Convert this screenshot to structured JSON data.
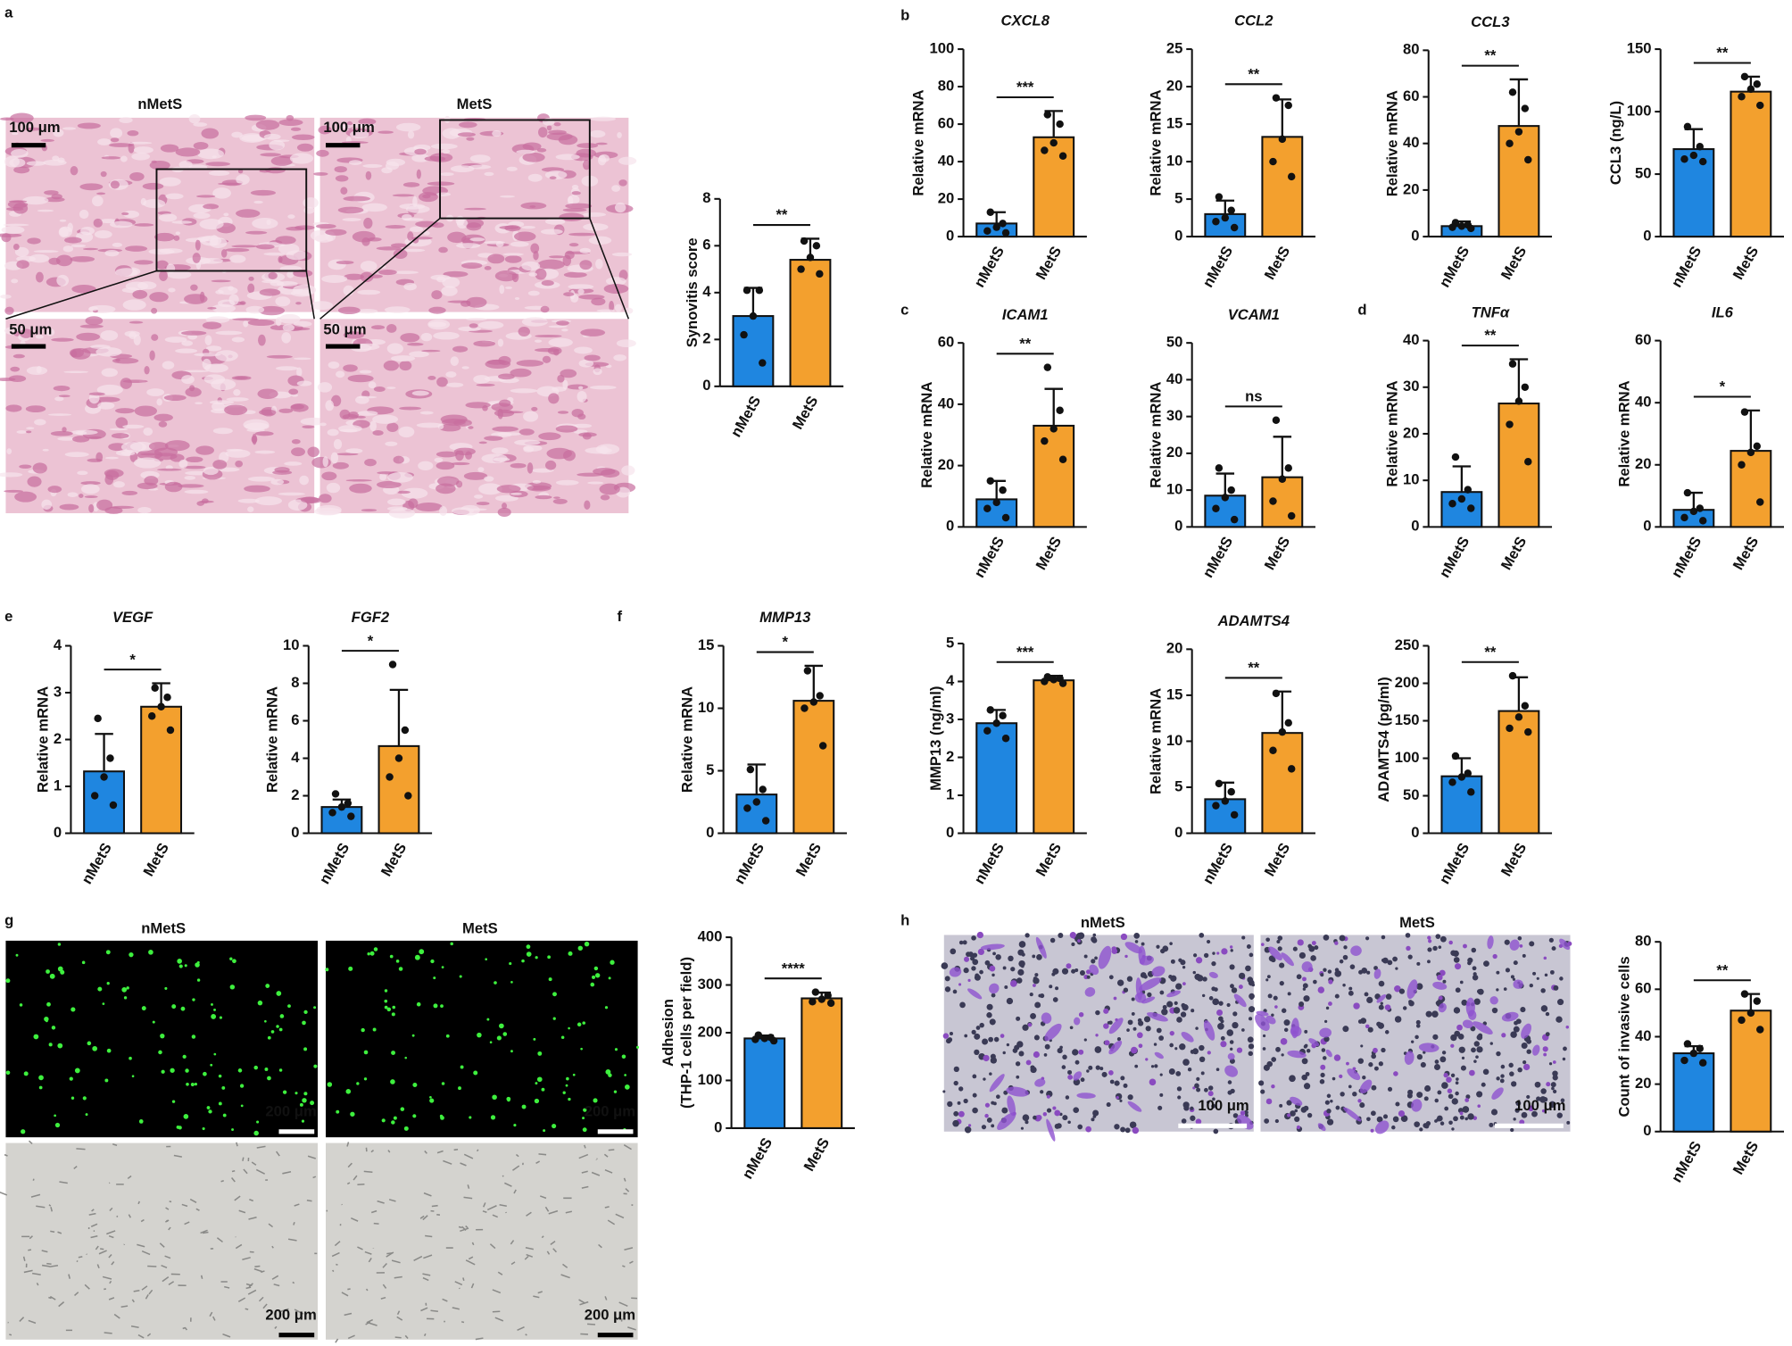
{
  "figure": {
    "panel_labels": [
      "a",
      "b",
      "c",
      "d",
      "e",
      "f",
      "g",
      "h"
    ],
    "image_groups": [
      {
        "columns": [
          "nMetS",
          "MetS"
        ],
        "scale_bars": [
          "100 μm",
          "100 μm",
          "50 μm",
          "50 μm"
        ]
      },
      {
        "columns": [
          "nMetS",
          "MetS"
        ],
        "scale_bars": [
          "200 μm",
          "200 μm",
          "200 μm",
          "200 μm"
        ]
      },
      {
        "columns": [
          "nMetS",
          "MetS"
        ],
        "scale_bars": [
          "100 μm",
          "100 μm"
        ]
      }
    ]
  },
  "chart_data": [
    {
      "type": "bar",
      "ylabel": "Synovitis score",
      "categories": [
        "nMetS",
        "MetS"
      ],
      "values": [
        3.0,
        5.4
      ],
      "errors": [
        1.2,
        0.9
      ],
      "points": [
        [
          4.1,
          4.1,
          3,
          2.2,
          1
        ],
        [
          6.2,
          6,
          5.5,
          5,
          4.8
        ]
      ],
      "significance": "**",
      "colors": [
        "#1f86e0",
        "#f3a02e"
      ],
      "ylim": [
        0,
        8
      ],
      "yticks": [
        0,
        2,
        4,
        6,
        8
      ]
    },
    {
      "type": "bar",
      "title": "CXCL8",
      "ylabel": "Relative mRNA",
      "categories": [
        "nMetS",
        "MetS"
      ],
      "values": [
        7,
        53
      ],
      "errors": [
        6,
        14
      ],
      "points": [
        [
          13,
          7,
          5,
          3,
          2
        ],
        [
          65,
          60,
          50,
          46,
          43
        ]
      ],
      "significance": "***",
      "colors": [
        "#1f86e0",
        "#f3a02e"
      ],
      "ylim": [
        0,
        100
      ],
      "yticks": [
        0,
        20,
        40,
        60,
        80,
        100
      ]
    },
    {
      "type": "bar",
      "title": "CCL2",
      "ylabel": "Relative mRNA",
      "categories": [
        "nMetS",
        "MetS"
      ],
      "values": [
        3,
        13.3
      ],
      "errors": [
        1.8,
        5
      ],
      "points": [
        [
          5.3,
          3.5,
          2.5,
          2,
          1.2
        ],
        [
          18.5,
          17.5,
          13,
          10,
          8
        ]
      ],
      "significance": "**",
      "colors": [
        "#1f86e0",
        "#f3a02e"
      ],
      "ylim": [
        0,
        25
      ],
      "yticks": [
        0,
        5,
        10,
        15,
        20,
        25
      ]
    },
    {
      "type": "bar",
      "title": "CCL3",
      "ylabel": "Relative mRNA",
      "categories": [
        "nMetS",
        "MetS"
      ],
      "values": [
        4.5,
        47.5
      ],
      "errors": [
        2,
        20
      ],
      "points": [
        [
          6,
          5,
          4.5,
          4,
          3.5
        ],
        [
          62,
          55,
          45,
          40,
          33
        ]
      ],
      "significance": "**",
      "colors": [
        "#1f86e0",
        "#f3a02e"
      ],
      "ylim": [
        0,
        80
      ],
      "yticks": [
        0,
        20,
        40,
        60,
        80
      ]
    },
    {
      "type": "bar",
      "ylabel": "CCL3 (ng/L)",
      "categories": [
        "nMetS",
        "MetS"
      ],
      "values": [
        70,
        116
      ],
      "errors": [
        16,
        12
      ],
      "points": [
        [
          88,
          72,
          65,
          62,
          60
        ],
        [
          128,
          122,
          118,
          112,
          105
        ]
      ],
      "significance": "**",
      "colors": [
        "#1f86e0",
        "#f3a02e"
      ],
      "ylim": [
        0,
        150
      ],
      "yticks": [
        0,
        50,
        100,
        150
      ]
    },
    {
      "type": "bar",
      "title": "ICAM1",
      "ylabel": "Relative mRNA",
      "categories": [
        "nMetS",
        "MetS"
      ],
      "values": [
        9,
        33
      ],
      "errors": [
        6,
        12
      ],
      "points": [
        [
          15,
          12,
          8,
          6,
          3
        ],
        [
          52,
          38,
          32,
          28,
          22
        ]
      ],
      "significance": "**",
      "colors": [
        "#1f86e0",
        "#f3a02e"
      ],
      "ylim": [
        0,
        60
      ],
      "yticks": [
        0,
        20,
        40,
        60
      ]
    },
    {
      "type": "bar",
      "title": "VCAM1",
      "ylabel": "Relative mRNA",
      "categories": [
        "nMetS",
        "MetS"
      ],
      "values": [
        8.5,
        13.5
      ],
      "errors": [
        6,
        11
      ],
      "points": [
        [
          16,
          10,
          8,
          5,
          2
        ],
        [
          29,
          16,
          13,
          7,
          3
        ]
      ],
      "significance": "ns",
      "colors": [
        "#1f86e0",
        "#f3a02e"
      ],
      "ylim": [
        0,
        50
      ],
      "yticks": [
        0,
        10,
        20,
        30,
        40,
        50
      ]
    },
    {
      "type": "bar",
      "title": "TNFα",
      "ylabel": "Relative mRNA",
      "categories": [
        "nMetS",
        "MetS"
      ],
      "values": [
        7.5,
        26.5
      ],
      "errors": [
        5.5,
        9.5
      ],
      "points": [
        [
          15,
          8,
          6,
          5,
          4
        ],
        [
          35,
          30,
          27,
          22,
          14
        ]
      ],
      "significance": "**",
      "colors": [
        "#1f86e0",
        "#f3a02e"
      ],
      "ylim": [
        0,
        40
      ],
      "yticks": [
        0,
        10,
        20,
        30,
        40
      ]
    },
    {
      "type": "bar",
      "title": "IL6",
      "ylabel": "Relative mRNA",
      "categories": [
        "nMetS",
        "MetS"
      ],
      "values": [
        5.5,
        24.5
      ],
      "errors": [
        5.5,
        13
      ],
      "points": [
        [
          11,
          6,
          5,
          3,
          2
        ],
        [
          37,
          26,
          24,
          20,
          8
        ]
      ],
      "significance": "*",
      "colors": [
        "#1f86e0",
        "#f3a02e"
      ],
      "ylim": [
        0,
        60
      ],
      "yticks": [
        0,
        20,
        40,
        60
      ]
    },
    {
      "type": "bar",
      "title": "VEGF",
      "ylabel": "Relative mRNA",
      "categories": [
        "nMetS",
        "MetS"
      ],
      "values": [
        1.32,
        2.7
      ],
      "errors": [
        0.8,
        0.5
      ],
      "points": [
        [
          2.45,
          1.6,
          1.2,
          0.8,
          0.6
        ],
        [
          3.1,
          2.9,
          2.7,
          2.5,
          2.2
        ]
      ],
      "significance": "*",
      "colors": [
        "#1f86e0",
        "#f3a02e"
      ],
      "ylim": [
        0,
        4
      ],
      "yticks": [
        0,
        1,
        2,
        3,
        4
      ]
    },
    {
      "type": "bar",
      "title": "FGF2",
      "ylabel": "Relative mRNA",
      "categories": [
        "nMetS",
        "MetS"
      ],
      "values": [
        1.4,
        4.65
      ],
      "errors": [
        0.4,
        3
      ],
      "points": [
        [
          2.1,
          1.6,
          1.4,
          1.1,
          0.9
        ],
        [
          9,
          5.5,
          4,
          3,
          2
        ]
      ],
      "significance": "*",
      "colors": [
        "#1f86e0",
        "#f3a02e"
      ],
      "ylim": [
        0,
        10
      ],
      "yticks": [
        0,
        2,
        4,
        6,
        8,
        10
      ]
    },
    {
      "type": "bar",
      "title": "MMP13",
      "ylabel": "Relative mRNA",
      "categories": [
        "nMetS",
        "MetS"
      ],
      "values": [
        3.1,
        10.6
      ],
      "errors": [
        2.4,
        2.8
      ],
      "points": [
        [
          5.1,
          3.5,
          2.5,
          2,
          1
        ],
        [
          13,
          11,
          10.5,
          10,
          7
        ]
      ],
      "significance": "*",
      "colors": [
        "#1f86e0",
        "#f3a02e"
      ],
      "ylim": [
        0,
        15
      ],
      "yticks": [
        0,
        5,
        10,
        15
      ]
    },
    {
      "type": "bar",
      "ylabel": "MMP13 (ng/ml)",
      "categories": [
        "nMetS",
        "MetS"
      ],
      "values": [
        2.9,
        4.03
      ],
      "errors": [
        0.35,
        0.12
      ],
      "points": [
        [
          3.25,
          3.1,
          2.9,
          2.7,
          2.5
        ],
        [
          4.12,
          4.08,
          4.05,
          4.0,
          3.95
        ]
      ],
      "significance": "***",
      "colors": [
        "#1f86e0",
        "#f3a02e"
      ],
      "ylim": [
        0,
        5
      ],
      "yticks": [
        0,
        1,
        2,
        3,
        4,
        5
      ]
    },
    {
      "type": "bar",
      "title": "ADAMTS4",
      "ylabel": "Relative mRNA",
      "categories": [
        "nMetS",
        "MetS"
      ],
      "values": [
        3.7,
        10.9
      ],
      "errors": [
        1.8,
        4.5
      ],
      "points": [
        [
          5.4,
          4.5,
          3.5,
          3,
          2
        ],
        [
          15.2,
          12,
          11,
          9,
          7
        ]
      ],
      "significance": "**",
      "colors": [
        "#1f86e0",
        "#f3a02e"
      ],
      "ylim": [
        0,
        20
      ],
      "yticks": [
        0,
        5,
        10,
        15,
        20
      ]
    },
    {
      "type": "bar",
      "ylabel": "ADAMTS4 (pg/ml)",
      "categories": [
        "nMetS",
        "MetS"
      ],
      "values": [
        76,
        163
      ],
      "errors": [
        24,
        45
      ],
      "points": [
        [
          103,
          80,
          75,
          68,
          55
        ],
        [
          210,
          170,
          155,
          140,
          135
        ]
      ],
      "significance": "**",
      "colors": [
        "#1f86e0",
        "#f3a02e"
      ],
      "ylim": [
        0,
        250
      ],
      "yticks": [
        0,
        50,
        100,
        150,
        200,
        250
      ]
    },
    {
      "type": "bar",
      "ylabel": [
        "Adhesion",
        "(THP-1 cells per field)"
      ],
      "categories": [
        "nMetS",
        "MetS"
      ],
      "values": [
        188,
        272
      ],
      "errors": [
        6,
        12
      ],
      "points": [
        [
          195,
          190,
          188,
          186,
          183
        ],
        [
          285,
          278,
          270,
          265,
          262
        ]
      ],
      "significance": "****",
      "colors": [
        "#1f86e0",
        "#f3a02e"
      ],
      "ylim": [
        0,
        400
      ],
      "yticks": [
        0,
        100,
        200,
        300,
        400
      ]
    },
    {
      "type": "bar",
      "ylabel": "Count of invasive cells",
      "categories": [
        "nMetS",
        "MetS"
      ],
      "values": [
        33,
        51
      ],
      "errors": [
        3,
        7
      ],
      "points": [
        [
          37,
          35,
          33,
          30,
          29
        ],
        [
          58,
          55,
          50,
          47,
          43
        ]
      ],
      "significance": "**",
      "colors": [
        "#1f86e0",
        "#f3a02e"
      ],
      "ylim": [
        0,
        80
      ],
      "yticks": [
        0,
        20,
        40,
        60,
        80
      ]
    }
  ]
}
